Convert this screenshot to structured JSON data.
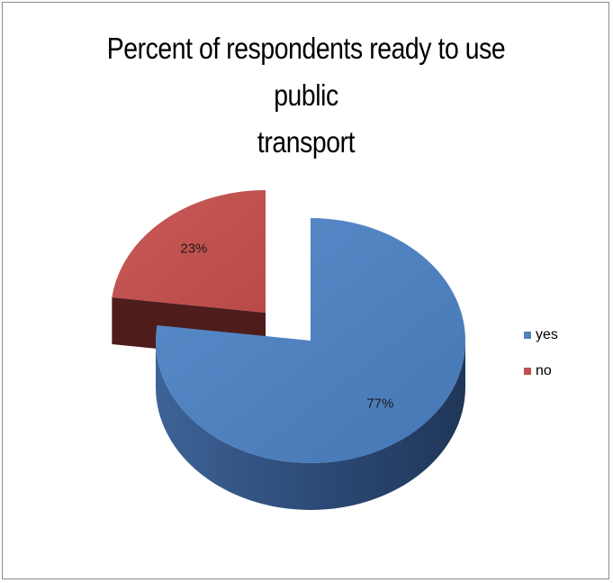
{
  "chart_data": {
    "type": "pie",
    "title": "Percent of respondents ready to use public transport",
    "title_lines": [
      "Percent of respondents ready to use public",
      "transport"
    ],
    "style": "3d exploded",
    "legend_position": "right",
    "categories": [
      "yes",
      "no"
    ],
    "values": [
      77,
      23
    ],
    "unit": "%",
    "data_labels": [
      "77%",
      "23%"
    ],
    "colors": [
      "#4f81bd",
      "#c0504d"
    ],
    "side_colors": [
      "#26406a",
      "#4e1c1b"
    ]
  }
}
